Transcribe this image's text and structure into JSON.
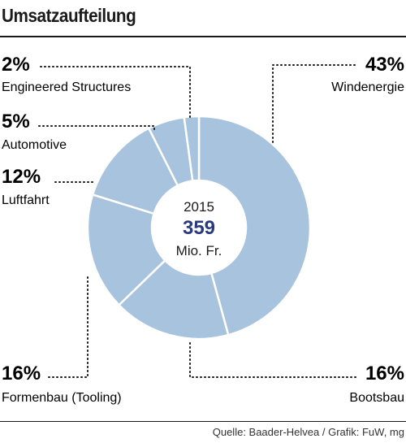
{
  "title": "Umsatzaufteilung",
  "source": "Quelle: Baader-Helvea / Grafik: FuW, mg",
  "center": {
    "year": "2015",
    "value": "359",
    "unit": "Mio. Fr."
  },
  "chart_data": {
    "type": "pie",
    "title": "Umsatzaufteilung",
    "categories": [
      "Windenergie",
      "Bootsbau",
      "Formenbau (Tooling)",
      "Luftfahrt",
      "Automotive",
      "Engineered Structures"
    ],
    "values": [
      43,
      16,
      16,
      12,
      5,
      2
    ],
    "value_labels": [
      "43%",
      "16%",
      "16%",
      "12%",
      "5%",
      "2%"
    ],
    "colors": {
      "slice": "#a8c3dd",
      "center_value": "#2a3a7e"
    }
  }
}
